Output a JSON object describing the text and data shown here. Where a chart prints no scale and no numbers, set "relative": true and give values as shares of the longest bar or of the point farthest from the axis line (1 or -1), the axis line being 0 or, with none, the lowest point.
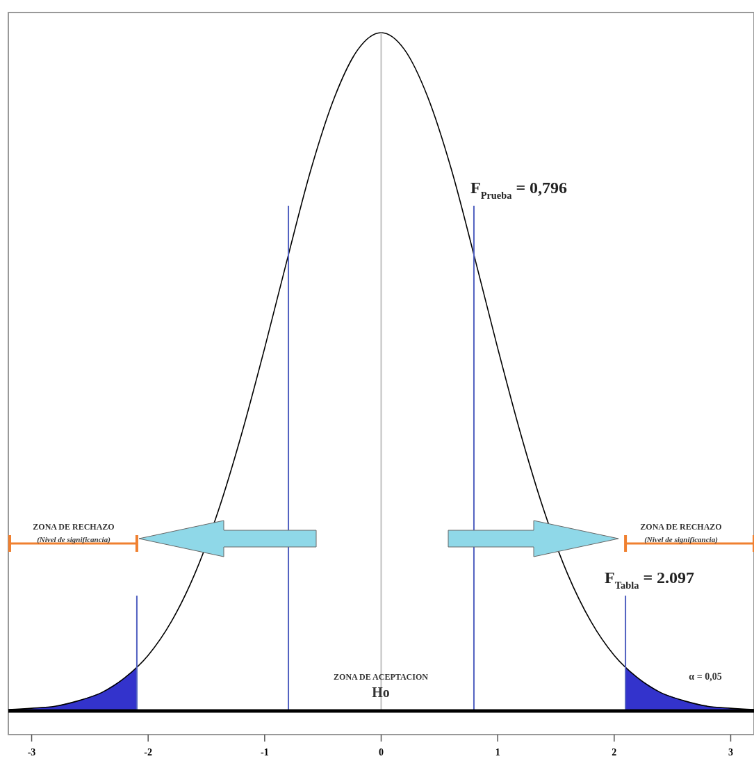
{
  "chart_data": {
    "type": "line",
    "relative": true,
    "xlim": [
      -3.2,
      3.2
    ],
    "xticks": [
      -3,
      -2,
      -1,
      0,
      1,
      2,
      3
    ],
    "tick_labels": "x",
    "marker": "none",
    "series": [
      {
        "color": "#000000",
        "x": [
          -3.2,
          -3,
          -2.8,
          -2.6,
          -2.4,
          -2.2,
          -2,
          -1.8,
          -1.6,
          -1.4,
          -1.2,
          -1,
          -0.8,
          -0.6,
          -0.4,
          -0.2,
          0,
          0.2,
          0.4,
          0.6,
          0.8,
          1,
          1.2,
          1.4,
          1.6,
          1.8,
          2,
          2.2,
          2.4,
          2.6,
          2.8,
          3,
          3.2
        ],
        "values": [
          0.002,
          0.004,
          0.007,
          0.015,
          0.027,
          0.049,
          0.082,
          0.132,
          0.202,
          0.294,
          0.407,
          0.535,
          0.67,
          0.8,
          0.905,
          0.975,
          1,
          0.975,
          0.905,
          0.8,
          0.67,
          0.535,
          0.407,
          0.294,
          0.202,
          0.132,
          0.082,
          0.049,
          0.027,
          0.015,
          0.007,
          0.004,
          0.002
        ]
      },
      {
        "type": "area",
        "color": "#3333cc",
        "x": [
          -3.2,
          -3,
          -2.8,
          -2.6,
          -2.4,
          -2.2,
          -2.097
        ],
        "values": [
          0.002,
          0.004,
          0.007,
          0.015,
          0.027,
          0.049,
          0.064
        ]
      },
      {
        "type": "area",
        "color": "#3333cc",
        "x": [
          2.097,
          2.2,
          2.4,
          2.6,
          2.8,
          3,
          3.2
        ],
        "values": [
          0.064,
          0.049,
          0.027,
          0.015,
          0.007,
          0.004,
          0.002
        ]
      },
      {
        "type": "line",
        "color": "#c0c0c0",
        "x": [
          0,
          0
        ],
        "values": [
          0,
          1
        ]
      },
      {
        "type": "line",
        "color": "#5060c0",
        "x": [
          -0.796,
          -0.796
        ],
        "values": [
          0,
          0.745
        ]
      },
      {
        "type": "line",
        "color": "#5060c0",
        "x": [
          0.796,
          0.796
        ],
        "values": [
          0,
          0.745
        ]
      },
      {
        "type": "line",
        "color": "#5060c0",
        "x": [
          -2.097,
          -2.097
        ],
        "values": [
          0,
          0.17
        ]
      },
      {
        "type": "line",
        "color": "#5060c0",
        "x": [
          2.097,
          2.097
        ],
        "values": [
          0,
          0.17
        ]
      },
      {
        "type": "line",
        "color": "#f08030",
        "x": [
          -3.2,
          -2.097
        ],
        "values": [
          0.247,
          0.247
        ]
      },
      {
        "type": "line",
        "color": "#f08030",
        "x": [
          2.097,
          3.2
        ],
        "values": [
          0.247,
          0.247
        ]
      }
    ],
    "annotations": [
      "ZONA DE RECHAZO",
      "(Nivel de significancia)",
      "ZONA DE RECHAZO",
      "(Nivel de significancia)",
      "ZONA DE ACEPTACION",
      "Ho",
      "α = 0,05",
      {
        "text": "F$_{Prueba}$ = 0,796",
        "x": 0.796,
        "y": 0.745
      },
      {
        "text": "F$_{Tabla}$ = 2.097",
        "x": 2.097,
        "y": 0.17
      }
    ]
  }
}
